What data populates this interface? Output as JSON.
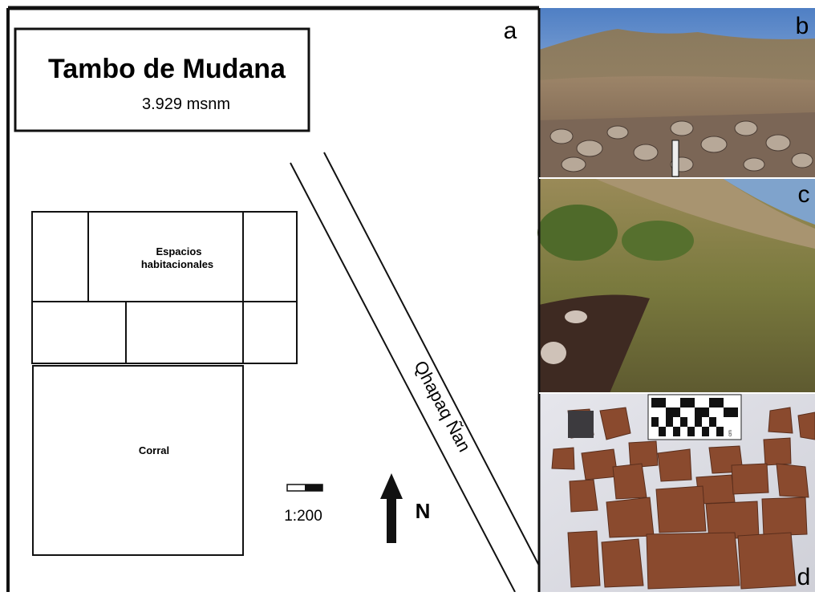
{
  "panel_a": {
    "label": "a",
    "title": "Tambo de Mudana",
    "elevation": "3.929 msnm",
    "rooms_label": [
      "Espacios",
      "habitacionales"
    ],
    "corral_label": "Corral",
    "scale": "1:200",
    "north": "N",
    "road_label": "Qhapaq Ñan"
  },
  "panel_b": {
    "label": "b"
  },
  "panel_c": {
    "label": "c"
  },
  "panel_d": {
    "label": "d",
    "scale_unit": "cm"
  }
}
